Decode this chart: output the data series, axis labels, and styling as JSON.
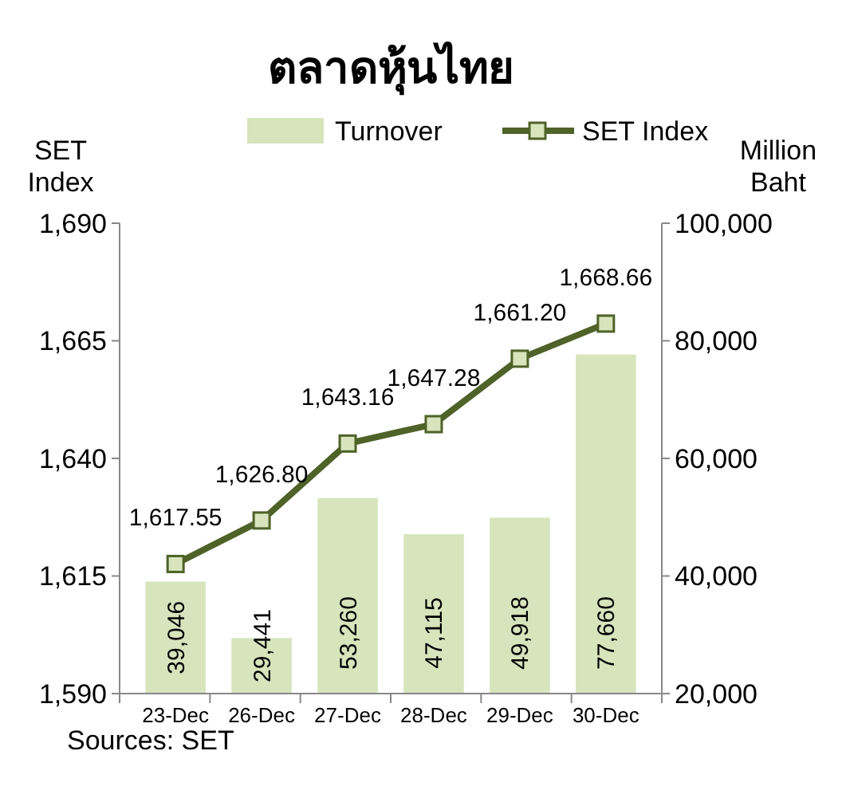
{
  "chart_data": {
    "type": "bar",
    "title": "ตลาดหุ้นไทย",
    "ylabel": "SET Index",
    "y2label": "Million Baht",
    "categories": [
      "23-Dec",
      "26-Dec",
      "27-Dec",
      "28-Dec",
      "29-Dec",
      "30-Dec"
    ],
    "series": [
      {
        "name": "Turnover",
        "axis": "y2",
        "color": "#d7e4bc",
        "values": [
          39046,
          29441,
          53260,
          47115,
          49918,
          77660
        ],
        "value_labels": [
          "39,046",
          "29,441",
          "53,260",
          "47,115",
          "49,918",
          "77,660"
        ]
      },
      {
        "type": "line",
        "name": "SET Index",
        "color": "#4f6228",
        "values": [
          1617.55,
          1626.8,
          1643.16,
          1647.28,
          1661.2,
          1668.66
        ],
        "value_labels": [
          "1,617.55",
          "1,626.80",
          "1,643.16",
          "1,647.28",
          "1,661.20",
          "1,668.66"
        ]
      }
    ],
    "ylim": [
      1590,
      1690
    ],
    "yticks": [
      {
        "value": 1590,
        "label": "1,590"
      },
      {
        "value": 1615,
        "label": "1,615"
      },
      {
        "value": 1640,
        "label": "1,640"
      },
      {
        "value": 1665,
        "label": "1,665"
      },
      {
        "value": 1690,
        "label": "1,690"
      }
    ],
    "y2lim": [
      20000,
      100000
    ],
    "y2ticks": [
      {
        "value": 20000,
        "label": "20,000"
      },
      {
        "value": 40000,
        "label": "40,000"
      },
      {
        "value": 60000,
        "label": "60,000"
      },
      {
        "value": 80000,
        "label": "80,000"
      },
      {
        "value": 100000,
        "label": "100,000"
      }
    ],
    "legend": "top",
    "marker": "square",
    "grid": false,
    "annotations": [
      "Sources: SET"
    ]
  }
}
